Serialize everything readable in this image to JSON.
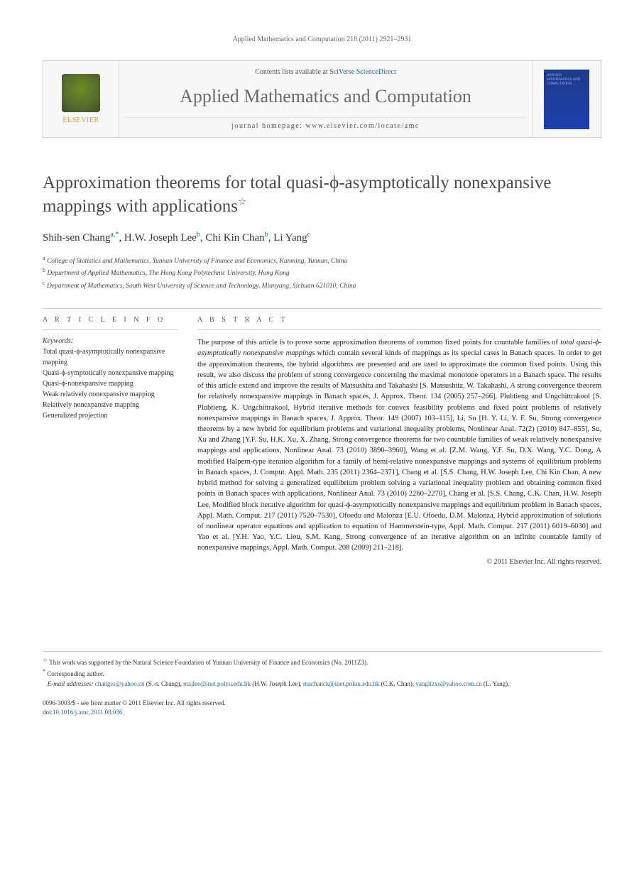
{
  "running_head": "Applied Mathematics and Computation 218 (2011) 2921–2931",
  "masthead": {
    "publisher_logo_text": "ELSEVIER",
    "contents_prefix": "Contents lists available at ",
    "contents_link": "SciVerse ScienceDirect",
    "journal_name": "Applied Mathematics and Computation",
    "homepage_label": "journal homepage: ",
    "homepage_url": "www.elsevier.com/locate/amc",
    "cover_text": "APPLIED MATHEMATICS AND COMPUTATION"
  },
  "title": "Approximation theorems for total quasi-ϕ-asymptotically nonexpansive mappings with applications",
  "title_note_marker": "☆",
  "authors": [
    {
      "name": "Shih-sen Chang",
      "affil": "a",
      "corr": "*"
    },
    {
      "name": "H.W. Joseph Lee",
      "affil": "b",
      "corr": ""
    },
    {
      "name": "Chi Kin Chan",
      "affil": "b",
      "corr": ""
    },
    {
      "name": "Li Yang",
      "affil": "c",
      "corr": ""
    }
  ],
  "affiliations": [
    {
      "marker": "a",
      "text": "College of Statistics and Mathematics, Yunnan University of Finance and Economics, Kunming, Yunnan, China"
    },
    {
      "marker": "b",
      "text": "Department of Applied Mathematics, The Hong Kong Polytechnic University, Hong Kong"
    },
    {
      "marker": "c",
      "text": "Department of Mathematics, South West University of Science and Technology, Mianyang, Sichuan 621010, China"
    }
  ],
  "article_info_hdr": "A R T I C L E   I N F O",
  "abstract_hdr": "A B S T R A C T",
  "keywords_label": "Keywords:",
  "keywords": [
    "Total quasi-ϕ-asymptotically nonexpansive mapping",
    "Quasi-ϕ-symptotically nonexpansive mapping",
    "Quasi-ϕ-nonexpansive mapping",
    "Weak relatively nonexpansive mapping",
    "Relatively nonexpansive mapping",
    "Generalized projection"
  ],
  "abstract_lead": "The purpose of this article is to prove some approximation theorems of common fixed points for countable families of ",
  "abstract_em": "total quasi-ϕ-asymptotically nonexpansive mappings",
  "abstract_tail": " which contain several kinds of mappings as its special cases in Banach spaces. In order to get the approximation theorems, the hybrid algorithms are presented and are used to approximate the common fixed points. Using this result, we also discuss the problem of strong convergence concerning the maximal monotone operators in a Banach space. The results of this article extend and improve the results of Matsushita and Takahashi [S. Matsushita, W. Takahashi, A strong convergence theorem for relatively nonexpansive mappings in Banach spaces, J. Approx. Theor. 134 (2005) 257–266], Plubtieng and Ungchittrakool [S. Plubtieng, K. Ungchittrakool, Hybrid iterative methods for convex feasibility problems and fixed point problems of relatively nonexpansive mappings in Banach spaces, J. Approx. Theor. 149 (2007) 103–115], Li, Su [H. Y. Li, Y. F. Su, Strong convergence theorems by a new hybrid for equilibrium problems and variational inequality problems, Nonlinear Anal. 72(2) (2010) 847–855], Su, Xu and Zhang [Y.F. Su, H.K. Xu, X. Zhang, Strong convergence theorems for two countable families of weak relatively nonexpansive mappings and applications, Nonlinear Anal. 73 (2010) 3890–3960], Wang et al. [Z.M. Wang, Y.F. Su, D.X. Wang, Y.C. Dong, A modified Halpern-type iteration algorithm for a family of hemi-relative nonexpansive mappings and systems of equilibrium problems in Banach spaces, J. Comput. Appl. Math. 235 (2011) 2364–2371], Chang et al. [S.S. Chang, H.W. Joseph Lee, Chi Kin Chan, A new hybrid method for solving a generalized equilibrium problem solving a variational inequality problem and obtaining common fixed points in Banach spaces with applications, Nonlinear Anal. 73 (2010) 2260–2270], Chang et al. [S.S. Chang, C.K. Chan, H.W. Joseph Lee, Modified block iterative algorithm for quasi-ϕ-asymptotically nonexpansive mappings and equilibrium problem in Banach spaces, Appl. Math. Comput. 217 (2011) 7520–7530], Ofoedu and Malonza [E.U. Ofoedu, D.M. Malonza, Hybrid approximation of solutions of nonlinear operator equations and application to equation of Hammerstein-type, Appl. Math. Comput. 217 (2011) 6019–6030] and Yao et al. [Y.H. Yao, Y.C. Liou, S.M. Kang, Strong convergence of an iterative algorithm on an infinite countable family of nonexpansive mappings, Appl. Math. Comput. 208 (2009) 211–218].",
  "copyright": "© 2011 Elsevier Inc. All rights reserved.",
  "footnotes": {
    "funding_marker": "☆",
    "funding": "This work was supported by the Natural Science Foundation of Yunnan University of Finance and Economics (No. 2011Z3).",
    "corr_marker": "*",
    "corr_label": "Corresponding author.",
    "email_label": "E-mail addresses:",
    "emails": [
      {
        "addr": "changss@yahoo.cn",
        "person": "(S.-s. Chang)"
      },
      {
        "addr": "majlee@inet.polyu.edu.hk",
        "person": "(H.W. Joseph Lee)"
      },
      {
        "addr": "machanck@inet.poluu.edu.hk",
        "person": "(C.K. Chan)"
      },
      {
        "addr": "yanglizxs@yahoo.com.cn",
        "person": "(L. Yang)"
      }
    ]
  },
  "footer": {
    "front_matter": "0096-3003/$ - see front matter © 2011 Elsevier Inc. All rights reserved.",
    "doi_label": "doi:",
    "doi": "10.1016/j.amc.2011.08.036"
  },
  "colors": {
    "link": "#1a6bb3",
    "text": "#333333",
    "heading": "#4a4a4a",
    "rule": "#cccccc"
  }
}
